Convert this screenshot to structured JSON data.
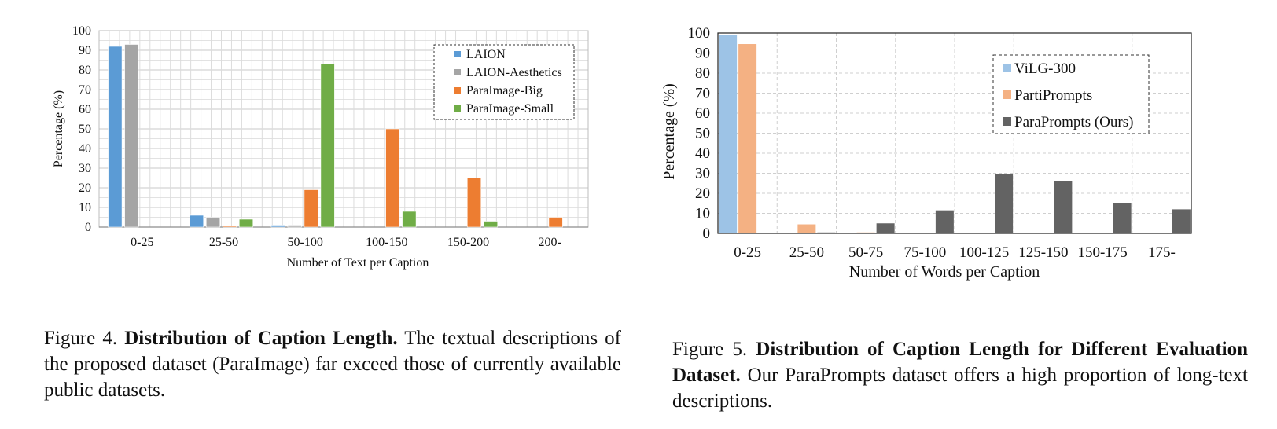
{
  "chart_data": [
    {
      "type": "bar",
      "categories": [
        "0-25",
        "25-50",
        "50-100",
        "100-150",
        "150-200",
        "200-"
      ],
      "series": [
        {
          "name": "LAION",
          "color": "#5b9bd5",
          "values": [
            92,
            6,
            1,
            0,
            0,
            0
          ]
        },
        {
          "name": "LAION-Aesthetics",
          "color": "#a5a5a5",
          "values": [
            93,
            5,
            1,
            0,
            0,
            0
          ]
        },
        {
          "name": "ParaImage-Big",
          "color": "#ed7d31",
          "values": [
            0,
            0.3,
            19,
            50,
            25,
            5
          ]
        },
        {
          "name": "ParaImage-Small",
          "color": "#70ad47",
          "values": [
            0,
            4,
            83,
            8,
            3,
            0
          ]
        }
      ],
      "title": "",
      "xlabel": "Number of Text per Caption",
      "ylabel": "Percentage (%)",
      "ylim": [
        0,
        100
      ],
      "yticks": [
        0,
        10,
        20,
        30,
        40,
        50,
        60,
        70,
        80,
        90,
        100
      ],
      "grid": "major and minor, solid light gray",
      "legend": "top-right"
    },
    {
      "type": "bar",
      "categories": [
        "0-25",
        "25-50",
        "50-75",
        "75-100",
        "100-125",
        "125-150",
        "150-175",
        "175-"
      ],
      "series": [
        {
          "name": "ViLG-300",
          "color": "#9dc3e6",
          "values": [
            99,
            0,
            0,
            0,
            0,
            0,
            0,
            0
          ]
        },
        {
          "name": "PartiPrompts",
          "color": "#f4b183",
          "values": [
            94.5,
            4.5,
            0.3,
            0,
            0,
            0,
            0,
            0
          ]
        },
        {
          "name": "ParaPrompts (Ours)",
          "color": "#636363",
          "values": [
            0,
            0.3,
            5,
            11.5,
            29.5,
            26,
            15,
            12
          ]
        }
      ],
      "title": "",
      "xlabel": "Number of Words per Caption",
      "ylabel": "Percentage (%)",
      "ylim": [
        0,
        100
      ],
      "yticks": [
        0,
        10,
        20,
        30,
        40,
        50,
        60,
        70,
        80,
        90,
        100
      ],
      "grid": "major, dashed light gray",
      "legend": "top-center"
    }
  ],
  "captions": {
    "fig4": {
      "label": "Figure 4.",
      "bold": "Distribution of Caption Length.",
      "text": "The textual descriptions of the proposed dataset (ParaImage) far exceed those of currently available public datasets."
    },
    "fig5": {
      "label": "Figure 5.",
      "bold": "Distribution of Caption Length for Different Evaluation Dataset.",
      "text": "Our ParaPrompts dataset offers a high proportion of long-text descriptions."
    }
  }
}
